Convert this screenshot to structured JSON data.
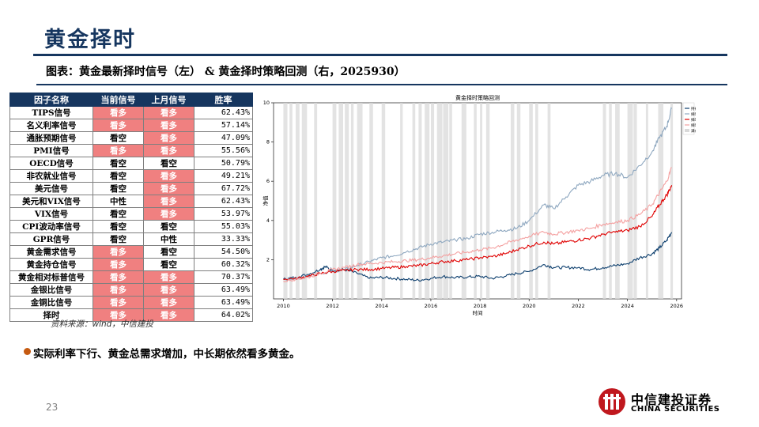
{
  "page": {
    "title": "黄金择时",
    "caption": "图表：黄金最新择时信号（左） & 黄金择时策略回测（右，2025930）",
    "source": "资料来源：wind，中信建投",
    "bullet": "实际利率下行、黄金总需求增加，中长期依然看多黄金。",
    "page_number": "23",
    "logo_cn": "中信建投证券",
    "logo_en": "CHINA SECURITIES"
  },
  "colors": {
    "brand_navy": "#16365f",
    "bull_cell": "#f08080",
    "bullet": "#c55a11",
    "logo_red": "#c0181e"
  },
  "table": {
    "headers": [
      "因子名称",
      "当前信号",
      "上月信号",
      "胜率"
    ],
    "rows": [
      {
        "name": "TIPS信号",
        "current": "看多",
        "last": "看多",
        "rate": "62.43%"
      },
      {
        "name": "名义利率信号",
        "current": "看多",
        "last": "看多",
        "rate": "57.14%"
      },
      {
        "name": "通胀预期信号",
        "current": "看空",
        "last": "看多",
        "rate": "47.09%"
      },
      {
        "name": "PMI信号",
        "current": "看多",
        "last": "看多",
        "rate": "55.56%"
      },
      {
        "name": "OECD信号",
        "current": "看空",
        "last": "看空",
        "rate": "50.79%"
      },
      {
        "name": "非农就业信号",
        "current": "看空",
        "last": "看多",
        "rate": "49.21%"
      },
      {
        "name": "美元信号",
        "current": "看空",
        "last": "看多",
        "rate": "67.72%"
      },
      {
        "name": "美元和VIX信号",
        "current": "中性",
        "last": "看多",
        "rate": "62.43%"
      },
      {
        "name": "VIX信号",
        "current": "看空",
        "last": "看多",
        "rate": "53.97%"
      },
      {
        "name": "CPI波动率信号",
        "current": "看空",
        "last": "看空",
        "rate": "55.03%"
      },
      {
        "name": "GPR信号",
        "current": "看空",
        "last": "中性",
        "rate": "33.33%"
      },
      {
        "name": "黄金需求信号",
        "current": "看多",
        "last": "看空",
        "rate": "54.50%"
      },
      {
        "name": "黄金持仓信号",
        "current": "看多",
        "last": "看空",
        "rate": "60.32%"
      },
      {
        "name": "黄金相对标普信号",
        "current": "看多",
        "last": "看多",
        "rate": "70.37%"
      },
      {
        "name": "金银比信号",
        "current": "看多",
        "last": "看多",
        "rate": "63.49%"
      },
      {
        "name": "金铜比信号",
        "current": "看多",
        "last": "看多",
        "rate": "63.49%"
      },
      {
        "name": "择时",
        "current": "看多",
        "last": "看多",
        "rate": "64.02%"
      }
    ]
  },
  "chart_data": {
    "type": "line",
    "title": "黄金择时策略回测",
    "xlabel": "时间",
    "ylabel": "净值",
    "xlim": [
      2009.6,
      2026.2
    ],
    "ylim": [
      0,
      10
    ],
    "x_ticks": [
      "2010",
      "2012",
      "2014",
      "2016",
      "2018",
      "2020",
      "2022",
      "2024",
      "2026"
    ],
    "y_ticks": [
      "2",
      "4",
      "6",
      "8",
      "10"
    ],
    "legend_position": "top-right",
    "legend_shade_label": "满仓",
    "series": [
      {
        "name": "持有黄金净值",
        "color": "#0d3f6e",
        "x": [
          2010.0,
          2010.5,
          2011.0,
          2011.5,
          2011.7,
          2012.0,
          2012.5,
          2013.0,
          2013.5,
          2014.0,
          2014.5,
          2015.0,
          2015.5,
          2016.0,
          2016.5,
          2017.0,
          2017.5,
          2018.0,
          2018.5,
          2019.0,
          2019.5,
          2020.0,
          2020.6,
          2021.0,
          2021.5,
          2022.0,
          2022.5,
          2023.0,
          2023.5,
          2024.0,
          2024.5,
          2025.0,
          2025.3,
          2025.6,
          2025.8
        ],
        "values": [
          1.0,
          1.1,
          1.25,
          1.5,
          1.65,
          1.45,
          1.5,
          1.3,
          1.05,
          1.1,
          1.05,
          1.0,
          0.95,
          1.05,
          1.15,
          1.08,
          1.12,
          1.15,
          1.05,
          1.15,
          1.3,
          1.4,
          1.75,
          1.6,
          1.6,
          1.6,
          1.5,
          1.6,
          1.7,
          1.8,
          2.1,
          2.3,
          2.6,
          3.0,
          3.4
        ]
      },
      {
        "name": "择时多空双向",
        "color": "#8fa8c0",
        "x": [
          2010.0,
          2010.5,
          2011.0,
          2011.5,
          2012.0,
          2012.5,
          2013.0,
          2013.5,
          2014.0,
          2014.5,
          2015.0,
          2015.5,
          2016.0,
          2016.5,
          2017.0,
          2017.5,
          2018.0,
          2018.5,
          2019.0,
          2019.5,
          2020.0,
          2020.6,
          2021.0,
          2021.5,
          2022.0,
          2022.5,
          2023.0,
          2023.5,
          2024.0,
          2024.5,
          2025.0,
          2025.3,
          2025.6,
          2025.8
        ],
        "values": [
          1.0,
          1.05,
          1.2,
          1.3,
          1.4,
          1.5,
          1.7,
          1.9,
          2.1,
          2.2,
          2.4,
          2.6,
          2.8,
          2.9,
          3.0,
          3.1,
          3.3,
          3.4,
          3.5,
          3.6,
          4.0,
          4.8,
          4.6,
          5.2,
          5.8,
          6.0,
          6.3,
          6.4,
          6.2,
          6.8,
          7.5,
          8.2,
          8.8,
          9.7
        ]
      },
      {
        "name": "择时纯多头1",
        "color": "#e00000",
        "x": [
          2010.0,
          2010.5,
          2011.0,
          2011.5,
          2012.0,
          2012.5,
          2013.0,
          2013.5,
          2014.0,
          2014.5,
          2015.0,
          2015.5,
          2016.0,
          2016.5,
          2017.0,
          2017.5,
          2018.0,
          2018.5,
          2019.0,
          2019.5,
          2020.0,
          2020.6,
          2021.0,
          2021.5,
          2022.0,
          2022.5,
          2023.0,
          2023.5,
          2024.0,
          2024.5,
          2025.0,
          2025.3,
          2025.6,
          2025.8
        ],
        "values": [
          1.0,
          1.05,
          1.15,
          1.3,
          1.4,
          1.45,
          1.5,
          1.5,
          1.55,
          1.6,
          1.65,
          1.7,
          1.8,
          1.9,
          1.95,
          2.0,
          2.1,
          2.15,
          2.3,
          2.5,
          2.7,
          2.9,
          2.8,
          2.9,
          3.0,
          3.1,
          3.3,
          3.4,
          3.5,
          3.7,
          4.2,
          4.8,
          5.3,
          5.8
        ]
      },
      {
        "name": "择时纯多头2",
        "color": "#f4a0a0",
        "x": [
          2010.0,
          2010.5,
          2011.0,
          2011.5,
          2012.0,
          2012.5,
          2013.0,
          2013.5,
          2014.0,
          2014.5,
          2015.0,
          2015.5,
          2016.0,
          2016.5,
          2017.0,
          2017.5,
          2018.0,
          2018.5,
          2019.0,
          2019.5,
          2020.0,
          2020.6,
          2021.0,
          2021.5,
          2022.0,
          2022.5,
          2023.0,
          2023.5,
          2024.0,
          2024.5,
          2025.0,
          2025.3,
          2025.6,
          2025.8
        ],
        "values": [
          0.9,
          1.0,
          1.1,
          1.3,
          1.5,
          1.6,
          1.75,
          1.8,
          1.85,
          1.9,
          1.95,
          2.0,
          2.1,
          2.2,
          2.3,
          2.4,
          2.5,
          2.6,
          2.8,
          3.0,
          3.2,
          3.4,
          3.3,
          3.4,
          3.5,
          3.6,
          3.8,
          3.9,
          4.0,
          4.3,
          4.8,
          5.4,
          6.0,
          6.7
        ]
      }
    ]
  }
}
